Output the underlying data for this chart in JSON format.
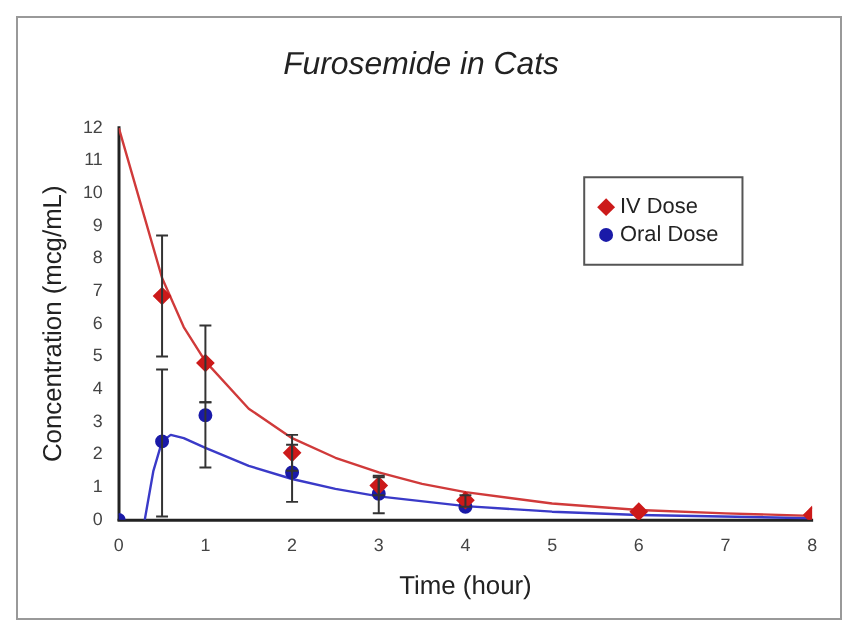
{
  "chart_data": {
    "type": "scatter",
    "title": "Furosemide in Cats",
    "xlabel": "Time (hour)",
    "ylabel": "Concentration (mcg/mL)",
    "xlim": [
      0,
      8
    ],
    "xticks": [
      0,
      1,
      2,
      3,
      4,
      5,
      6,
      7,
      8
    ],
    "ylim": [
      0,
      12
    ],
    "yticks": [
      0,
      1,
      2,
      3,
      4,
      5,
      6,
      7,
      8,
      9,
      10,
      11,
      12
    ],
    "grid": false,
    "legend": "top right",
    "series": [
      {
        "type": "line",
        "color": "#d03a3a",
        "marker": "none",
        "x": [
          0,
          0.25,
          0.5,
          0.75,
          1,
          1.5,
          2,
          2.5,
          3,
          3.5,
          4,
          5,
          6,
          7,
          8
        ],
        "values": [
          12,
          9.7,
          7.4,
          5.9,
          4.85,
          3.4,
          2.5,
          1.9,
          1.45,
          1.1,
          0.85,
          0.5,
          0.3,
          0.2,
          0.12
        ]
      },
      {
        "type": "line",
        "color": "#3a3ac8",
        "marker": "none",
        "x": [
          0.3,
          0.4,
          0.5,
          0.6,
          0.75,
          1,
          1.5,
          2,
          2.5,
          3,
          4,
          5,
          6,
          8
        ],
        "values": [
          0,
          1.5,
          2.4,
          2.6,
          2.5,
          2.2,
          1.65,
          1.25,
          0.95,
          0.72,
          0.42,
          0.25,
          0.15,
          0.05
        ]
      },
      {
        "type": "scatter",
        "name": "IV Dose",
        "color": "#cc1a1a",
        "marker": "diamond",
        "x": [
          0.5,
          1,
          2,
          3,
          4,
          6,
          8
        ],
        "values": [
          6.85,
          4.8,
          2.05,
          1.05,
          0.6,
          0.25,
          0.15
        ],
        "errors": [
          [
            5.0,
            8.7
          ],
          [
            3.6,
            5.95
          ],
          [
            1.5,
            2.6
          ],
          [
            0.75,
            1.35
          ],
          [
            0.4,
            0.75
          ],
          null,
          null
        ]
      },
      {
        "type": "scatter",
        "name": "Oral Dose",
        "color": "#1a1aa8",
        "marker": "circle",
        "x": [
          0,
          0.5,
          1,
          2,
          3,
          4
        ],
        "values": [
          0,
          2.4,
          3.2,
          1.45,
          0.8,
          0.4
        ],
        "errors": [
          null,
          [
            0.1,
            4.6
          ],
          [
            1.6,
            3.6
          ],
          [
            0.55,
            2.3
          ],
          [
            0.2,
            1.3
          ],
          null
        ]
      }
    ]
  }
}
